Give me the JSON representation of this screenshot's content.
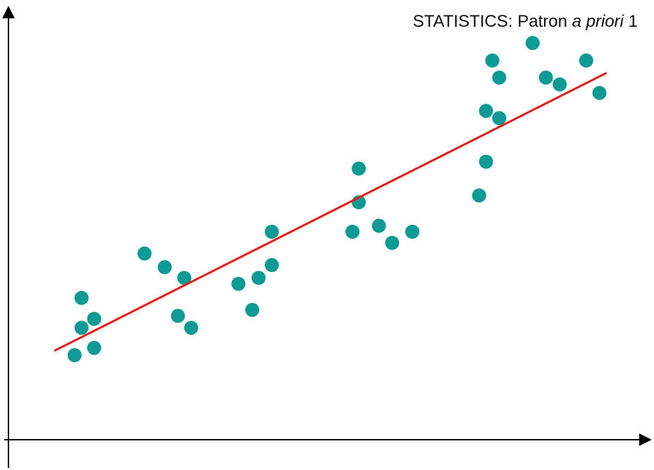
{
  "chart_data": {
    "type": "scatter",
    "title_parts": {
      "prefix": "STATISTICS:  Patron ",
      "italic": "a priori",
      "suffix": " 1"
    },
    "xlabel": "",
    "ylabel": "",
    "xlim": [
      0,
      100
    ],
    "ylim": [
      0,
      100
    ],
    "grid": false,
    "legend": "none",
    "axis_color": "#000000",
    "point_color": "#0f9a95",
    "line_color": "#e8191b",
    "points": [
      {
        "x": 10.5,
        "y": 19.8
      },
      {
        "x": 11.6,
        "y": 26.2
      },
      {
        "x": 11.6,
        "y": 33.2
      },
      {
        "x": 13.6,
        "y": 21.5
      },
      {
        "x": 13.6,
        "y": 28.3
      },
      {
        "x": 21.6,
        "y": 43.6
      },
      {
        "x": 24.8,
        "y": 40.4
      },
      {
        "x": 26.9,
        "y": 29.0
      },
      {
        "x": 27.9,
        "y": 37.9
      },
      {
        "x": 29.0,
        "y": 26.2
      },
      {
        "x": 36.5,
        "y": 36.5
      },
      {
        "x": 38.7,
        "y": 30.4
      },
      {
        "x": 39.7,
        "y": 37.9
      },
      {
        "x": 41.8,
        "y": 40.9
      },
      {
        "x": 41.8,
        "y": 48.7
      },
      {
        "x": 54.6,
        "y": 48.7
      },
      {
        "x": 55.6,
        "y": 55.6
      },
      {
        "x": 55.6,
        "y": 63.5
      },
      {
        "x": 58.8,
        "y": 50.1
      },
      {
        "x": 60.9,
        "y": 46.1
      },
      {
        "x": 64.1,
        "y": 48.7
      },
      {
        "x": 74.7,
        "y": 57.2
      },
      {
        "x": 75.8,
        "y": 65.1
      },
      {
        "x": 75.8,
        "y": 77.0
      },
      {
        "x": 76.8,
        "y": 88.8
      },
      {
        "x": 77.9,
        "y": 75.3
      },
      {
        "x": 77.9,
        "y": 84.8
      },
      {
        "x": 83.2,
        "y": 92.9
      },
      {
        "x": 85.3,
        "y": 84.8
      },
      {
        "x": 87.5,
        "y": 83.2
      },
      {
        "x": 91.7,
        "y": 88.8
      },
      {
        "x": 93.8,
        "y": 81.2
      }
    ],
    "trend_line": {
      "x": [
        7.4,
        94.8
      ],
      "y": [
        20.9,
        85.8
      ]
    }
  }
}
